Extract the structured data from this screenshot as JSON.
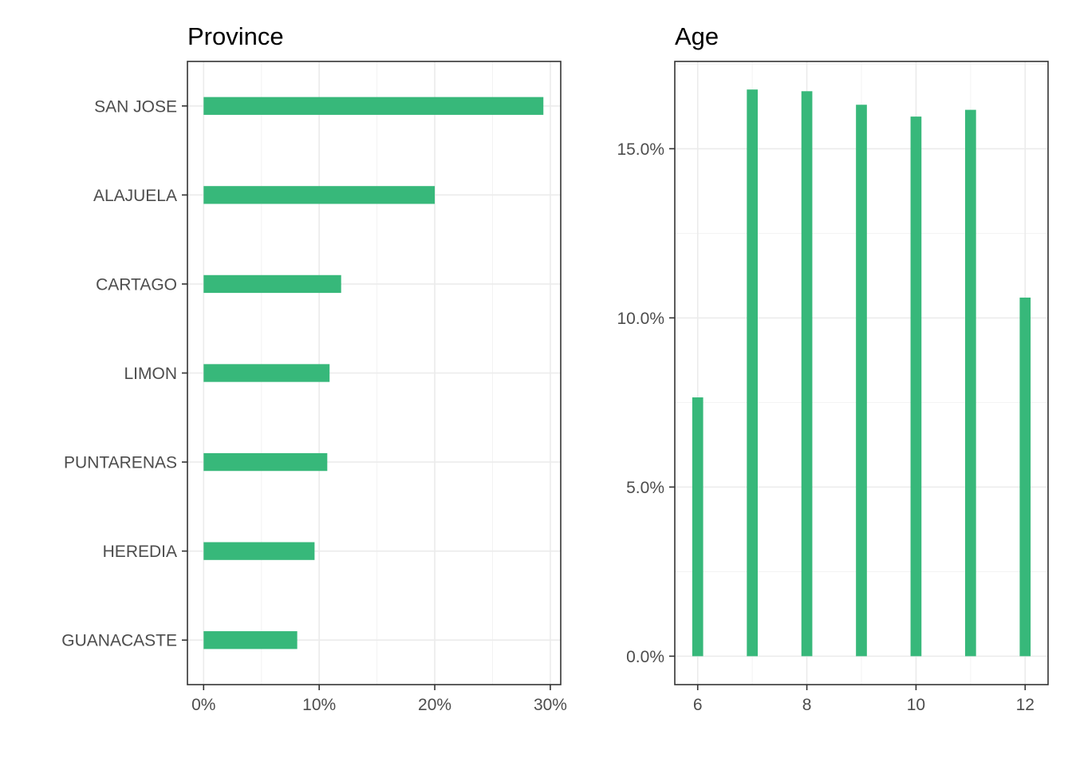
{
  "chart_data": [
    {
      "type": "bar",
      "orientation": "horizontal",
      "title": "Province",
      "xlabel": "",
      "ylabel": "",
      "categories": [
        "SAN JOSE",
        "ALAJUELA",
        "CARTAGO",
        "LIMON",
        "PUNTARENAS",
        "HEREDIA",
        "GUANACASTE"
      ],
      "values": [
        29.4,
        20.0,
        11.9,
        10.9,
        10.7,
        9.6,
        8.1
      ],
      "xlim": [
        -1.4,
        30.9
      ],
      "x_ticks": [
        0,
        10,
        20,
        30
      ],
      "x_tick_labels": [
        "0%",
        "10%",
        "20%",
        "30%"
      ],
      "grid": true,
      "color": "#37b87a"
    },
    {
      "type": "bar",
      "orientation": "vertical",
      "title": "Age",
      "xlabel": "",
      "ylabel": "",
      "x": [
        6,
        7,
        8,
        9,
        10,
        11,
        12
      ],
      "values": [
        7.65,
        16.75,
        16.7,
        16.3,
        15.95,
        16.15,
        10.6
      ],
      "xlim": [
        5.58,
        12.42
      ],
      "ylim": [
        -0.84,
        17.58
      ],
      "x_ticks": [
        6,
        8,
        10,
        12
      ],
      "x_tick_labels": [
        "6",
        "8",
        "10",
        "12"
      ],
      "y_ticks": [
        0,
        5,
        10,
        15
      ],
      "y_tick_labels": [
        "0.0%",
        "5.0%",
        "10.0%",
        "15.0%"
      ],
      "grid": true,
      "color": "#37b87a"
    }
  ]
}
